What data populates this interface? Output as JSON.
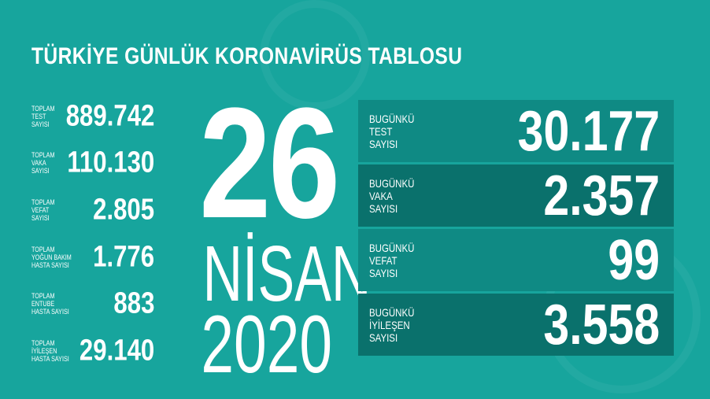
{
  "title": "TÜRKİYE GÜNLÜK KORONAVİRÜS TABLOSU",
  "totals": [
    {
      "label": "TOPLAM\nTEST\nSAYISI",
      "value": "889.742"
    },
    {
      "label": "TOPLAM\nVAKA\nSAYISI",
      "value": "110.130"
    },
    {
      "label": "TOPLAM\nVEFAT\nSAYISI",
      "value": "2.805"
    },
    {
      "label": "TOPLAM\nYOĞUN BAKIM\nHASTA SAYISI",
      "value": "1.776"
    },
    {
      "label": "TOPLAM\nENTUBE\nHASTA SAYISI",
      "value": "883"
    },
    {
      "label": "TOPLAM\nİYİLEŞEN\nHASTA SAYISI",
      "value": "29.140"
    }
  ],
  "date": {
    "day": "26",
    "month": "NİSAN",
    "year": "2020"
  },
  "daily": [
    {
      "label": "BUGÜNKÜ\nTEST\nSAYISI",
      "value": "30.177",
      "color": "#0f8a84"
    },
    {
      "label": "BUGÜNKÜ\nVAKA\nSAYISI",
      "value": "2.357",
      "color": "#0a716c"
    },
    {
      "label": "BUGÜNKÜ\nVEFAT\nSAYISI",
      "value": "99",
      "color": "#0f8a84"
    },
    {
      "label": "BUGÜNKÜ\nİYİLEŞEN\nSAYISI",
      "value": "3.558",
      "color": "#0a716c"
    }
  ]
}
